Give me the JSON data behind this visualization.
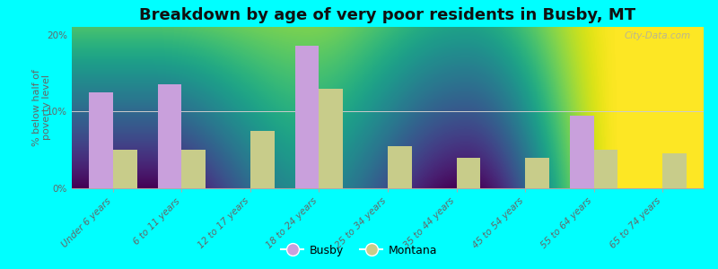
{
  "title": "Breakdown by age of very poor residents in Busby, MT",
  "ylabel": "% below half of\npoverty level",
  "categories": [
    "Under 6 years",
    "6 to 11 years",
    "12 to 17 years",
    "18 to 24 years",
    "25 to 34 years",
    "35 to 44 years",
    "45 to 54 years",
    "55 to 64 years",
    "65 to 74 years"
  ],
  "busby_values": [
    12.5,
    13.5,
    0,
    18.5,
    0,
    0,
    0,
    9.5,
    0
  ],
  "montana_values": [
    5.0,
    5.0,
    7.5,
    13.0,
    5.5,
    4.0,
    4.0,
    5.0,
    4.5
  ],
  "busby_color": "#c9a0dc",
  "montana_color": "#c8cc8a",
  "background_color": "#00ffff",
  "plot_bg_top": "#f5f8f0",
  "plot_bg_bottom": "#e0ede0",
  "ylim": [
    0,
    21
  ],
  "yticks": [
    0,
    10,
    20
  ],
  "ytick_labels": [
    "0%",
    "10%",
    "20%"
  ],
  "bar_width": 0.35,
  "title_fontsize": 13,
  "axis_label_fontsize": 8,
  "tick_fontsize": 7.5,
  "legend_labels": [
    "Busby",
    "Montana"
  ],
  "watermark": "City-Data.com"
}
